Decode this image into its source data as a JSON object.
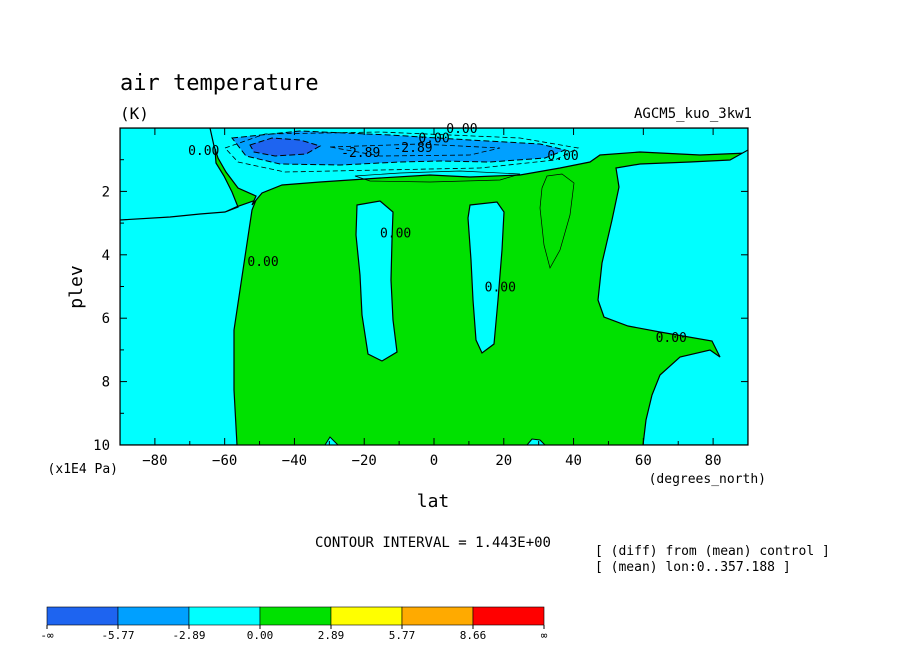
{
  "chart_data": {
    "type": "contour",
    "title": "air temperature",
    "units": "(K)",
    "model": "AGCM5_kuo_3kw1",
    "xlabel": "lat",
    "xunits": "(degrees_north)",
    "ylabel": "plev",
    "yunits": "(x1E4 Pa)",
    "xlim": [
      -90,
      90
    ],
    "ylim": [
      10,
      0
    ],
    "x_ticks": [
      -80,
      -60,
      -40,
      -20,
      0,
      20,
      40,
      60,
      80
    ],
    "y_ticks": [
      2,
      4,
      6,
      8,
      10
    ],
    "contour_interval": "CONTOUR INTERVAL = 1.443E+00",
    "notes": [
      "[ (diff) from (mean) control ]",
      "[ (mean) lon:0..357.188 ]"
    ],
    "contour_labels": [
      {
        "text": "0.00",
        "lat": -66,
        "plev": 0.7
      },
      {
        "text": "-2.89",
        "lat": -21,
        "plev": 0.75
      },
      {
        "text": "-2.89",
        "lat": -6,
        "plev": 0.6
      },
      {
        "text": "0.00",
        "lat": 0,
        "plev": 0.3
      },
      {
        "text": "0.00",
        "lat": 8,
        "plev": 0.0
      },
      {
        "text": "0.00",
        "lat": 37,
        "plev": 0.85
      },
      {
        "text": "0.00",
        "lat": -11,
        "plev": 3.3
      },
      {
        "text": "0.00",
        "lat": -49,
        "plev": 4.2
      },
      {
        "text": "0.00",
        "lat": 19,
        "plev": 5.0
      },
      {
        "text": "0.00",
        "lat": 68,
        "plev": 6.6
      }
    ],
    "colorbar": {
      "labels": [
        "-∞",
        "-5.77",
        "-2.89",
        "0.00",
        "2.89",
        "5.77",
        "8.66",
        "∞"
      ],
      "colors": [
        "#1e64f0",
        "#00a0ff",
        "#00ffff",
        "#00e100",
        "#ffff00",
        "#ffaa00",
        "#ff0000"
      ]
    },
    "field_colors": {
      "negative_weak": "#00ffff",
      "positive_weak": "#00e100",
      "negative_mid": "#00a0ff",
      "negative_strong": "#1e64f0"
    }
  }
}
